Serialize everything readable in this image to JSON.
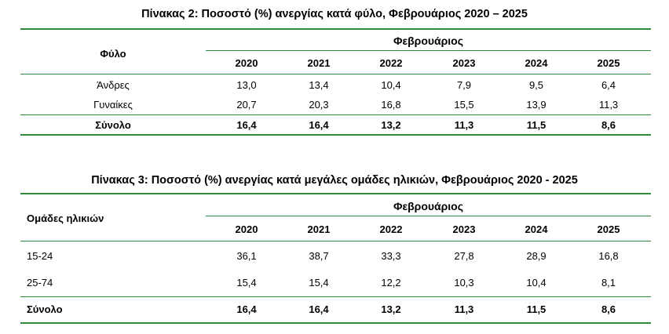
{
  "table2": {
    "title": "Πίνακας 2: Ποσοστό (%) ανεργίας κατά φύλο, Φεβρουάριος 2020 – 2025",
    "row_header": "Φύλο",
    "group_header": "Φεβρουάριος",
    "years": [
      "2020",
      "2021",
      "2022",
      "2023",
      "2024",
      "2025"
    ],
    "rows": [
      {
        "label": "Άνδρες",
        "values": [
          "13,0",
          "13,4",
          "10,4",
          "7,9",
          "9,5",
          "6,4"
        ]
      },
      {
        "label": "Γυναίκες",
        "values": [
          "20,7",
          "20,3",
          "16,8",
          "15,5",
          "13,9",
          "11,3"
        ]
      }
    ],
    "total": {
      "label": "Σύνολο",
      "values": [
        "16,4",
        "16,4",
        "13,2",
        "11,3",
        "11,5",
        "8,6"
      ]
    }
  },
  "table3": {
    "title": "Πίνακας 3: Ποσοστό (%) ανεργίας κατά μεγάλες ομάδες ηλικιών, Φεβρουάριος 2020 - 2025",
    "row_header": "Ομάδες ηλικιών",
    "group_header": "Φεβρουάριος",
    "years": [
      "2020",
      "2021",
      "2022",
      "2023",
      "2024",
      "2025"
    ],
    "rows": [
      {
        "label": "15-24",
        "values": [
          "36,1",
          "38,7",
          "33,3",
          "27,8",
          "28,9",
          "16,8"
        ]
      },
      {
        "label": "25-74",
        "values": [
          "15,4",
          "15,4",
          "12,2",
          "10,3",
          "10,4",
          "8,1"
        ]
      }
    ],
    "total": {
      "label": "Σύνολο",
      "values": [
        "16,4",
        "16,4",
        "13,2",
        "11,3",
        "11,5",
        "8,6"
      ]
    }
  },
  "colors": {
    "rule": "#2e8b3b"
  }
}
